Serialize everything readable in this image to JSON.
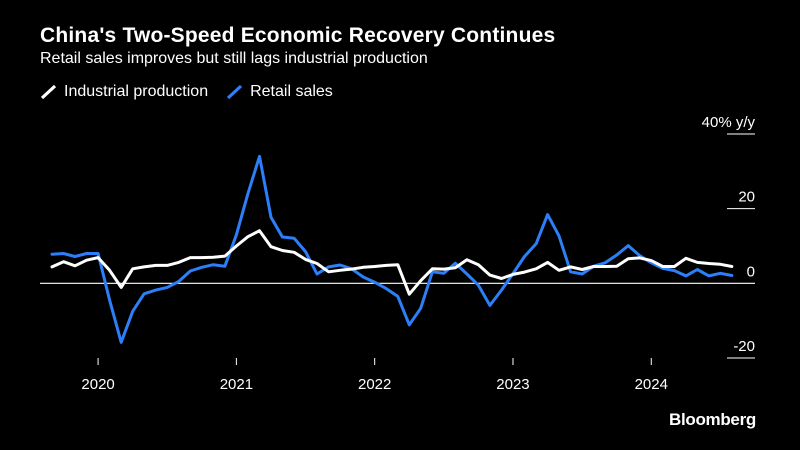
{
  "chart_data": {
    "type": "line",
    "title": "China's Two-Speed Economic Recovery Continues",
    "subtitle": "Retail sales improves but still lags industrial production",
    "y_unit_label": "40% y/y",
    "ylim": [
      -20,
      40
    ],
    "y_ticks": [
      40,
      20,
      0,
      -20
    ],
    "y_tick_labels": [
      "40% y/y",
      "20",
      "0",
      "-20"
    ],
    "x_tick_labels": [
      "2020",
      "2021",
      "2022",
      "2023",
      "2024"
    ],
    "x_tick_dates": [
      2020.0,
      2021.0,
      2022.0,
      2023.0,
      2024.0
    ],
    "x_range": [
      2019.58,
      2024.75
    ],
    "source": "Bloomberg",
    "series": [
      {
        "name": "Industrial production",
        "color": "#ffffff",
        "x": [
          2019.667,
          2019.75,
          2019.833,
          2019.917,
          2020.0,
          2020.083,
          2020.167,
          2020.25,
          2020.333,
          2020.417,
          2020.5,
          2020.583,
          2020.667,
          2020.75,
          2020.833,
          2020.917,
          2021.0,
          2021.083,
          2021.167,
          2021.25,
          2021.333,
          2021.417,
          2021.5,
          2021.583,
          2021.667,
          2021.75,
          2021.833,
          2021.917,
          2022.0,
          2022.083,
          2022.167,
          2022.25,
          2022.333,
          2022.417,
          2022.5,
          2022.583,
          2022.667,
          2022.75,
          2022.833,
          2022.917,
          2023.0,
          2023.083,
          2023.167,
          2023.25,
          2023.333,
          2023.417,
          2023.5,
          2023.583,
          2023.667,
          2023.75,
          2023.833,
          2023.917,
          2024.0,
          2024.083,
          2024.167,
          2024.25,
          2024.333,
          2024.417,
          2024.5,
          2024.583
        ],
        "values": [
          4.4,
          5.8,
          4.7,
          6.2,
          6.9,
          3.5,
          -1.1,
          3.9,
          4.4,
          4.8,
          4.8,
          5.6,
          6.9,
          6.9,
          7.0,
          7.3,
          10.0,
          12.5,
          14.1,
          9.8,
          8.8,
          8.3,
          6.4,
          5.3,
          3.1,
          3.5,
          3.8,
          4.3,
          4.5,
          4.8,
          5.0,
          -2.9,
          0.7,
          3.9,
          3.8,
          4.2,
          6.3,
          5.0,
          2.2,
          1.3,
          2.4,
          3.0,
          3.9,
          5.6,
          3.5,
          4.4,
          3.7,
          4.5,
          4.5,
          4.6,
          6.6,
          6.8,
          6.1,
          4.5,
          4.5,
          6.7,
          5.6,
          5.3,
          5.1,
          4.5
        ]
      },
      {
        "name": "Retail sales",
        "color": "#2d7ff9",
        "x": [
          2019.667,
          2019.75,
          2019.833,
          2019.917,
          2020.0,
          2020.083,
          2020.167,
          2020.25,
          2020.333,
          2020.417,
          2020.5,
          2020.583,
          2020.667,
          2020.75,
          2020.833,
          2020.917,
          2021.0,
          2021.083,
          2021.167,
          2021.25,
          2021.333,
          2021.417,
          2021.5,
          2021.583,
          2021.667,
          2021.75,
          2021.833,
          2021.917,
          2022.0,
          2022.083,
          2022.167,
          2022.25,
          2022.333,
          2022.417,
          2022.5,
          2022.583,
          2022.667,
          2022.75,
          2022.833,
          2022.917,
          2023.0,
          2023.083,
          2023.167,
          2023.25,
          2023.333,
          2023.417,
          2023.5,
          2023.583,
          2023.667,
          2023.75,
          2023.833,
          2023.917,
          2024.0,
          2024.083,
          2024.167,
          2024.25,
          2024.333,
          2024.417,
          2024.5,
          2024.583
        ],
        "values": [
          7.8,
          8.0,
          7.2,
          8.0,
          8.0,
          -4.5,
          -15.8,
          -7.5,
          -2.8,
          -1.8,
          -1.1,
          0.5,
          3.3,
          4.3,
          5.0,
          4.6,
          13.0,
          24.0,
          34.0,
          17.7,
          12.4,
          12.1,
          8.5,
          2.5,
          4.4,
          4.9,
          3.9,
          1.7,
          0.3,
          -1.4,
          -3.5,
          -11.1,
          -6.7,
          3.1,
          2.7,
          5.4,
          2.5,
          -0.5,
          -5.9,
          -1.8,
          2.6,
          7.2,
          10.6,
          18.4,
          12.7,
          3.1,
          2.5,
          4.6,
          5.5,
          7.6,
          10.1,
          7.4,
          5.5,
          4.0,
          3.4,
          2.0,
          3.7,
          2.0,
          2.7,
          2.1
        ]
      }
    ]
  },
  "legend": {
    "items": [
      {
        "label": "Industrial production",
        "color": "#ffffff"
      },
      {
        "label": "Retail sales",
        "color": "#2d7ff9"
      }
    ]
  }
}
